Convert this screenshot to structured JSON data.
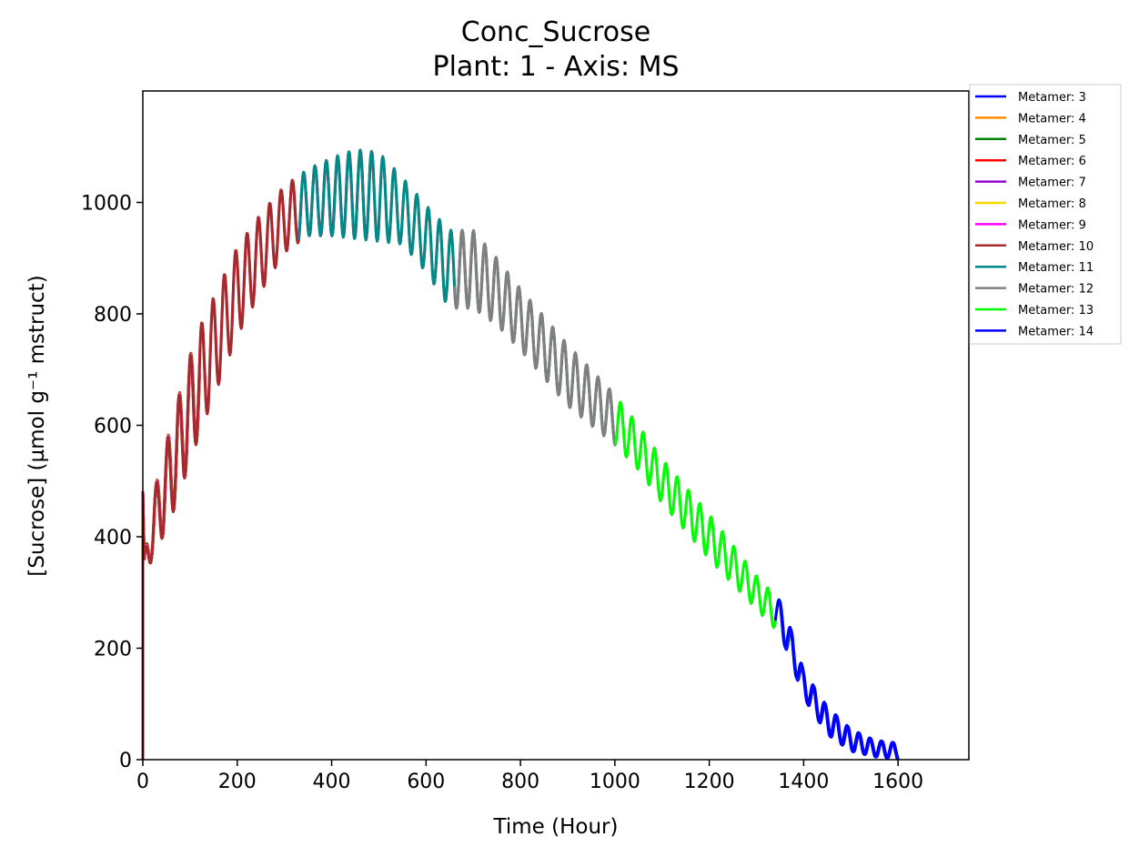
{
  "chart_data": {
    "type": "line",
    "title": "Conc_Sucrose",
    "subtitle": "Plant: 1 - Axis: MS",
    "xlabel": "Time (Hour)",
    "ylabel": "[Sucrose] (µmol g⁻¹ mstruct)",
    "xlim": [
      0,
      1750
    ],
    "ylim": [
      0,
      1200
    ],
    "xticks": [
      0,
      200,
      400,
      600,
      800,
      1000,
      1200,
      1400,
      1600
    ],
    "yticks": [
      0,
      200,
      400,
      600,
      800,
      1000
    ],
    "grid": false,
    "legend_position": "outside-top-right",
    "envelope": {
      "t": [
        0,
        25,
        50,
        75,
        100,
        125,
        150,
        175,
        200,
        250,
        300,
        350,
        400,
        450,
        500,
        550,
        600,
        650,
        700,
        750,
        800,
        850,
        900,
        950,
        1000,
        1050,
        1100,
        1150,
        1200,
        1250,
        1300,
        1350,
        1375,
        1400,
        1450,
        1500,
        1550,
        1600
      ],
      "mean": [
        330,
        430,
        490,
        560,
        630,
        690,
        740,
        790,
        840,
        910,
        970,
        1000,
        1010,
        1015,
        1010,
        985,
        935,
        880,
        880,
        840,
        790,
        740,
        690,
        650,
        610,
        560,
        500,
        450,
        400,
        350,
        300,
        255,
        200,
        135,
        70,
        35,
        20,
        15
      ],
      "amp": [
        20,
        55,
        80,
        90,
        95,
        95,
        90,
        85,
        80,
        70,
        60,
        60,
        70,
        80,
        80,
        60,
        60,
        70,
        70,
        60,
        55,
        55,
        55,
        50,
        45,
        40,
        40,
        40,
        40,
        35,
        30,
        30,
        30,
        25,
        25,
        20,
        15,
        15
      ]
    },
    "period_hours": 24,
    "series": [
      {
        "name": "Metamer: 3",
        "color": "#0000ff",
        "t_start": 1350,
        "t_end": 1600
      },
      {
        "name": "Metamer: 4",
        "color": "#ff8c00",
        "t_start": 0,
        "t_end": 120
      },
      {
        "name": "Metamer: 5",
        "color": "#008000",
        "t_start": 0,
        "t_end": 120
      },
      {
        "name": "Metamer: 6",
        "color": "#ff0000",
        "t_start": 0,
        "t_end": 120
      },
      {
        "name": "Metamer: 7",
        "color": "#9400d3",
        "t_start": 0,
        "t_end": 120
      },
      {
        "name": "Metamer: 8",
        "color": "#ffd700",
        "t_start": 0,
        "t_end": 330
      },
      {
        "name": "Metamer: 9",
        "color": "#ff00ff",
        "t_start": 0,
        "t_end": 490
      },
      {
        "name": "Metamer: 10",
        "color": "#a52a2a",
        "t_start": 0,
        "t_end": 1000
      },
      {
        "name": "Metamer: 11",
        "color": "#008b8b",
        "t_start": 330,
        "t_end": 1000
      },
      {
        "name": "Metamer: 12",
        "color": "#808080",
        "t_start": 660,
        "t_end": 1350
      },
      {
        "name": "Metamer: 13",
        "color": "#00ff00",
        "t_start": 1000,
        "t_end": 1400
      },
      {
        "name": "Metamer: 14",
        "color": "#0000ff",
        "t_start": 1340,
        "t_end": 1600
      }
    ]
  }
}
